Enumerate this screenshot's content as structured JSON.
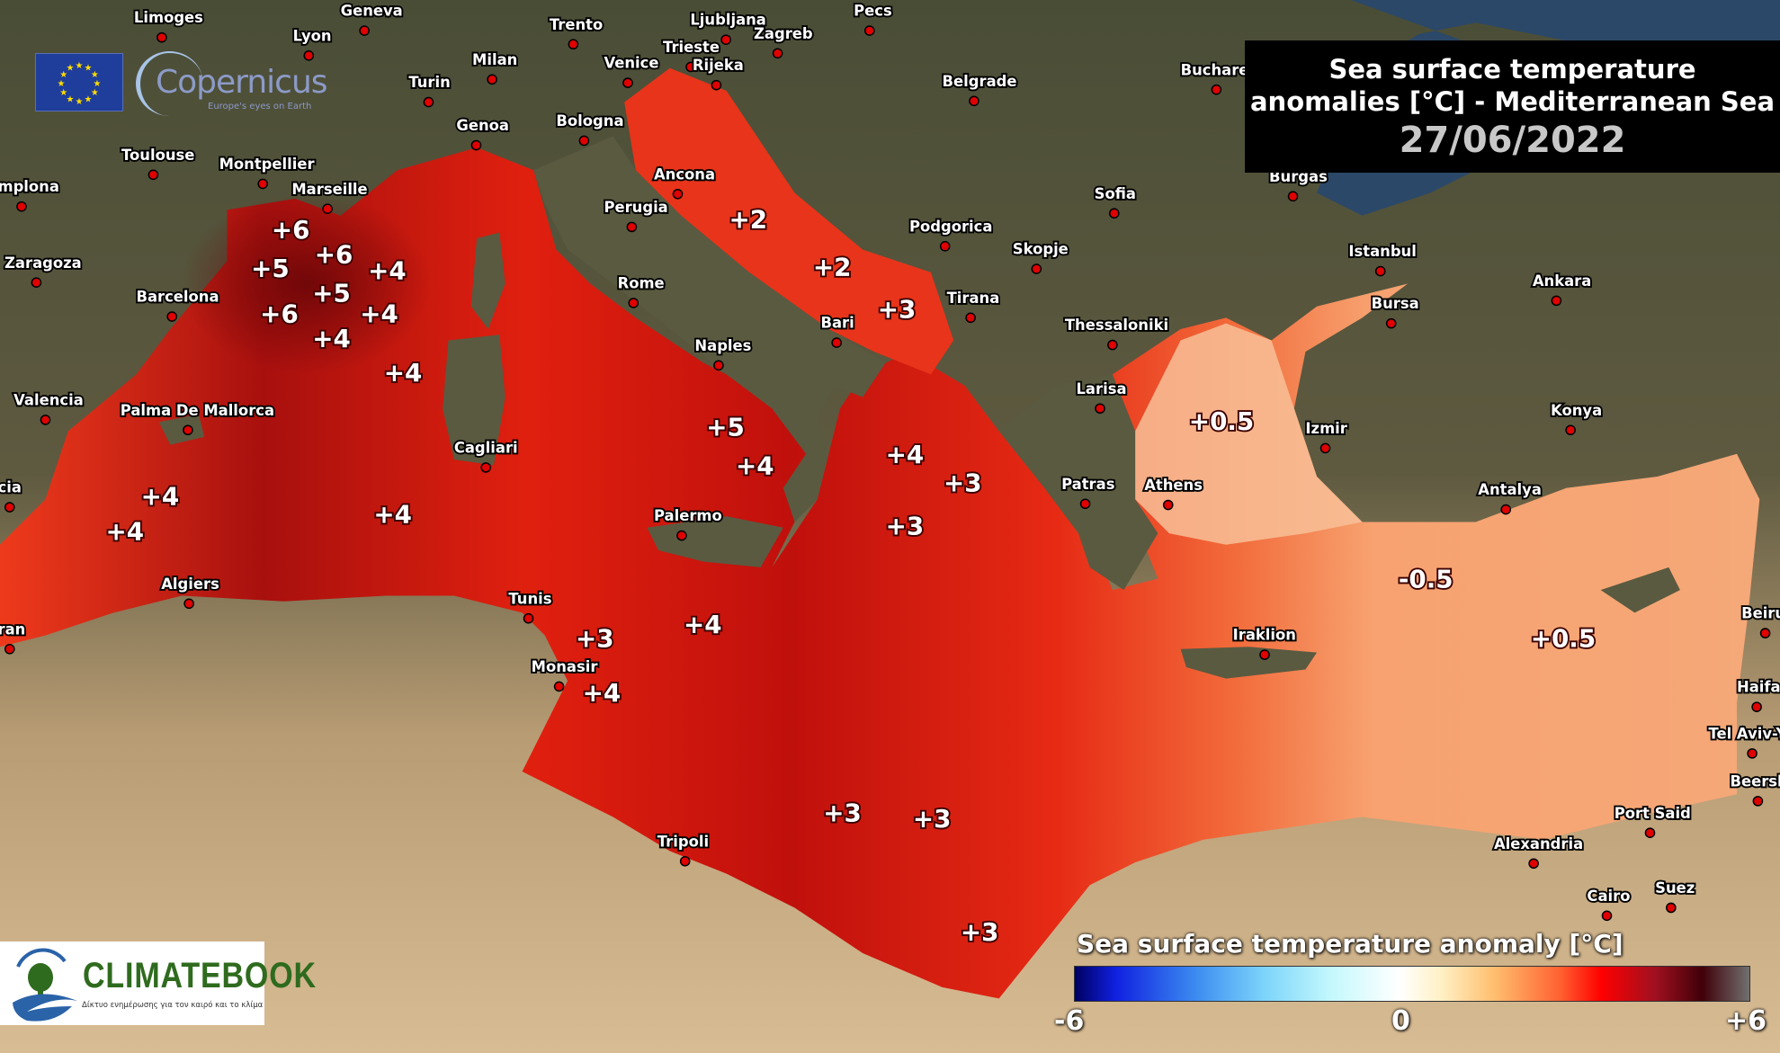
{
  "title": {
    "line1": "Sea surface temperature",
    "line2": "anomalies [°C] - Mediterranean Sea",
    "date": "27/06/2022"
  },
  "logos": {
    "eu_flag": "European Union flag",
    "copernicus_name": "Copernicus",
    "copernicus_tagline": "Europe's eyes on Earth",
    "climatebook_name": "CLIMATEBOOK",
    "climatebook_tagline": "Δίκτυο ενημέρωσης για τον καιρό και το κλίμα"
  },
  "legend": {
    "title": "Sea surface temperature anomaly [°C]",
    "min": "-6",
    "mid": "0",
    "max": "+6",
    "colors": [
      "#000060",
      "#1020e0",
      "#7cd4fa",
      "#ffffff",
      "#ffc070",
      "#ff0000",
      "#400008",
      "#707070"
    ]
  },
  "cities": [
    "Limoges",
    "Geneva",
    "Trento",
    "Ljubljana",
    "Zagreb",
    "Pecs",
    "Lyon",
    "Milan",
    "Venice",
    "Trieste",
    "Rijeka",
    "Turin",
    "Belgrade",
    "Bucharest",
    "Genoa",
    "Bologna",
    "Toulouse",
    "Montpellier",
    "Marseille",
    "Ancona",
    "Perugia",
    "Sofia",
    "Burgas",
    "Podgorica",
    "Skopje",
    "Istanbul",
    "Ankara",
    "Rome",
    "Zaragoza",
    "Barcelona",
    "mplona",
    "Tirana",
    "Bari",
    "Bursa",
    "Thessaloniki",
    "Naples",
    "Larisa",
    "Valencia",
    "Palma De Mallorca",
    "Izmir",
    "Konya",
    "Cagliari",
    "Patras",
    "Athens",
    "Antalya",
    "cia",
    "Palermo",
    "Algiers",
    "Tunis",
    "ran",
    "Iraklion",
    "Beirut",
    "Monasir",
    "Haifa",
    "Tel Aviv-Ya",
    "Beershe",
    "Port Said",
    "Tripoli",
    "Alexandria",
    "Cairo",
    "Suez"
  ],
  "anomaly_labels": [
    "+6",
    "+6",
    "+5",
    "+4",
    "+5",
    "+6",
    "+4",
    "+4",
    "+4",
    "+2",
    "+2",
    "+3",
    "+5",
    "+4",
    "+4",
    "+3",
    "+3",
    "+0.5",
    "+4",
    "+4",
    "+4",
    "-0.5",
    "+0.5",
    "+3",
    "+4",
    "+4",
    "+3",
    "+3",
    "+3"
  ]
}
